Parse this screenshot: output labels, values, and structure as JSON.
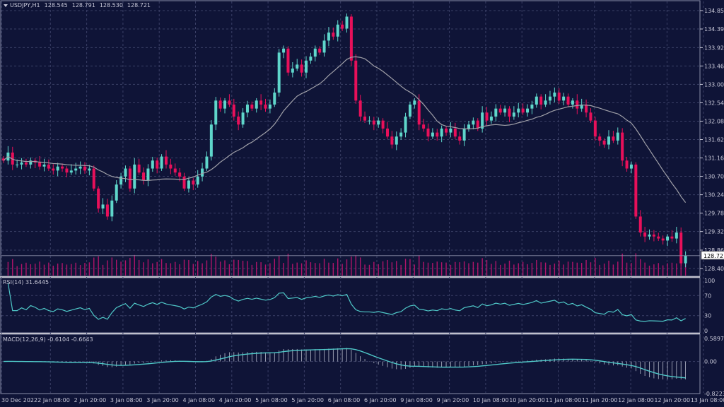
{
  "header": {
    "symbol": "USDJPY,H1",
    "open": "128.545",
    "high": "128.791",
    "low": "128.530",
    "close": "128.721"
  },
  "rsi": {
    "label": "RSI(14) 31.6445",
    "levels": [
      "100",
      "70",
      "30",
      "0"
    ]
  },
  "macd": {
    "label": "MACD(12,26,9) -0.6104 -0.6643",
    "levels": [
      "0.5897",
      "0.00",
      "-0.8223"
    ]
  },
  "current_price": "128.721",
  "colors": {
    "background": "#0f1437",
    "up": "#5fd6cb",
    "down": "#e8105a",
    "ma": "#a0a0a8",
    "indicator": "#4fc8c8",
    "grid": "#3a3f66"
  },
  "chart_data": {
    "type": "candlestick",
    "symbol": "USDJPY",
    "timeframe": "H1",
    "price_ticks": [
      "134.850",
      "134.390",
      "133.925",
      "133.465",
      "133.005",
      "132.545",
      "132.085",
      "131.625",
      "131.165",
      "130.705",
      "130.245",
      "129.785",
      "129.325",
      "128.860",
      "128.400"
    ],
    "ylim": [
      128.4,
      134.85
    ],
    "time_ticks": [
      "30 Dec 2022",
      "2 Jan 08:00",
      "2 Jan 20:00",
      "3 Jan 08:00",
      "3 Jan 20:00",
      "4 Jan 08:00",
      "4 Jan 20:00",
      "5 Jan 08:00",
      "5 Jan 20:00",
      "6 Jan 08:00",
      "6 Jan 20:00",
      "9 Jan 08:00",
      "9 Jan 20:00",
      "10 Jan 08:00",
      "10 Jan 20:00",
      "11 Jan 08:00",
      "11 Jan 20:00",
      "12 Jan 08:00",
      "12 Jan 20:00",
      "13 Jan 08:00"
    ],
    "grid": true,
    "close": [
      131.1,
      131.3,
      131.0,
      131.0,
      131.05,
      131.0,
      131.1,
      131.05,
      130.95,
      131.0,
      130.9,
      130.85,
      130.95,
      130.9,
      130.8,
      130.85,
      130.9,
      130.95,
      130.85,
      130.9,
      130.4,
      129.9,
      130.0,
      129.7,
      130.1,
      130.5,
      130.7,
      130.9,
      130.4,
      131.0,
      130.8,
      130.6,
      130.9,
      131.1,
      130.9,
      131.2,
      131.0,
      130.9,
      130.8,
      130.7,
      130.4,
      130.6,
      130.5,
      130.7,
      130.9,
      131.2,
      132.0,
      132.6,
      132.4,
      132.6,
      132.5,
      132.2,
      132.0,
      132.3,
      132.5,
      132.4,
      132.6,
      132.5,
      132.4,
      132.5,
      132.8,
      133.8,
      133.9,
      133.3,
      133.4,
      133.5,
      133.3,
      133.6,
      133.7,
      133.9,
      133.8,
      134.1,
      134.3,
      134.2,
      134.5,
      134.4,
      134.7,
      133.6,
      132.6,
      132.2,
      132.1,
      132.1,
      132.0,
      132.1,
      131.9,
      131.7,
      131.5,
      131.7,
      131.8,
      132.2,
      132.5,
      132.6,
      132.0,
      131.9,
      131.7,
      131.8,
      131.7,
      131.9,
      131.8,
      131.9,
      131.7,
      131.6,
      131.9,
      132.0,
      132.1,
      131.9,
      132.3,
      132.1,
      132.2,
      132.4,
      132.3,
      132.4,
      132.2,
      132.3,
      132.4,
      132.3,
      132.4,
      132.5,
      132.7,
      132.5,
      132.6,
      132.7,
      132.8,
      132.6,
      132.7,
      132.5,
      132.6,
      132.4,
      132.5,
      132.3,
      132.1,
      131.7,
      131.6,
      131.5,
      131.7,
      131.6,
      131.8,
      131.1,
      130.9,
      131.0,
      129.7,
      129.3,
      129.2,
      129.25,
      129.2,
      129.15,
      129.1,
      129.2,
      129.15,
      129.3,
      128.53,
      128.721
    ],
    "rsi_levels": [
      0,
      30,
      70,
      100
    ],
    "macd_range": [
      -0.8223,
      0.5897
    ]
  }
}
